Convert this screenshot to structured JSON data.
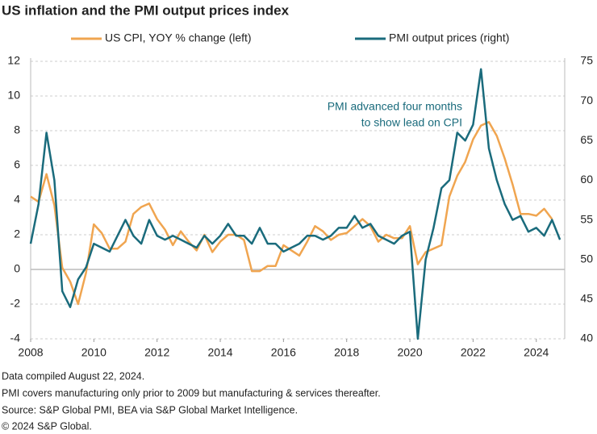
{
  "chart_data": {
    "type": "line",
    "title": "US inflation and the PMI output prices index",
    "annotation": [
      "PMI advanced four months",
      "to show lead on CPI"
    ],
    "footnotes": [
      "Data compiled August 22, 2024.",
      "PMI covers manufacturing only prior to 2009 but manufacturing & services thereafter.",
      "Source: S&P Global PMI, BEA via S&P Global Market Intelligence.",
      "© 2024 S&P Global."
    ],
    "x": [
      2008,
      2008.25,
      2008.5,
      2008.75,
      2009,
      2009.25,
      2009.5,
      2009.75,
      2010,
      2010.25,
      2010.5,
      2010.75,
      2011,
      2011.25,
      2011.5,
      2011.75,
      2012,
      2012.25,
      2012.5,
      2012.75,
      2013,
      2013.25,
      2013.5,
      2013.75,
      2014,
      2014.25,
      2014.5,
      2014.75,
      2015,
      2015.25,
      2015.5,
      2015.75,
      2016,
      2016.25,
      2016.5,
      2016.75,
      2017,
      2017.25,
      2017.5,
      2017.75,
      2018,
      2018.25,
      2018.5,
      2018.75,
      2019,
      2019.25,
      2019.5,
      2019.75,
      2020,
      2020.25,
      2020.5,
      2020.75,
      2021,
      2021.25,
      2021.5,
      2021.75,
      2022,
      2022.25,
      2022.5,
      2022.75,
      2023,
      2023.25,
      2023.5,
      2023.75,
      2024,
      2024.25,
      2024.5,
      2024.75
    ],
    "series": [
      {
        "name": "US CPI, YOY % change (left)",
        "color": "#f0a550",
        "axis": "y",
        "values": [
          4.2,
          3.9,
          5.5,
          3.7,
          0.1,
          -0.7,
          -2.0,
          -0.2,
          2.6,
          2.1,
          1.2,
          1.2,
          1.6,
          3.2,
          3.6,
          3.8,
          2.9,
          2.3,
          1.4,
          2.2,
          1.6,
          1.1,
          2.0,
          1.0,
          1.6,
          2.0,
          2.0,
          1.7,
          -0.1,
          -0.1,
          0.2,
          0.2,
          1.4,
          1.1,
          0.8,
          1.6,
          2.5,
          2.2,
          1.7,
          2.0,
          2.1,
          2.5,
          2.9,
          2.5,
          1.6,
          2.0,
          1.8,
          1.8,
          2.5,
          0.3,
          1.0,
          1.2,
          1.4,
          4.2,
          5.4,
          6.2,
          7.5,
          8.3,
          8.5,
          7.7,
          6.4,
          4.9,
          3.2,
          3.2,
          3.1,
          3.5,
          2.9,
          null
        ]
      },
      {
        "name": "PMI output prices (right)",
        "color": "#1a6b7c",
        "axis": "y2",
        "values": [
          52,
          57,
          66,
          60,
          46,
          44,
          47.5,
          49,
          52,
          51.5,
          51,
          53,
          55,
          53,
          52,
          55,
          53,
          52.5,
          53,
          52.5,
          52,
          51.5,
          53,
          52,
          53,
          54.5,
          53,
          53,
          52,
          54,
          52,
          52,
          51,
          51.5,
          52,
          53,
          53,
          52.5,
          53,
          54,
          54,
          55.5,
          54,
          54.5,
          53,
          52.5,
          52,
          53,
          53.5,
          40,
          50,
          54,
          59,
          60,
          66,
          65,
          67,
          74,
          64,
          60,
          57,
          55,
          55.5,
          53.5,
          54,
          53,
          55,
          52.5
        ]
      }
    ],
    "xlim": [
      2008,
      2024.9
    ],
    "xticks": [
      2008,
      2010,
      2012,
      2014,
      2016,
      2018,
      2020,
      2022,
      2024
    ],
    "ylim": [
      -4,
      12
    ],
    "yticks": [
      -4,
      -2,
      0,
      2,
      4,
      6,
      8,
      10,
      12
    ],
    "y2lim": [
      40,
      75
    ],
    "y2ticks": [
      40,
      45,
      50,
      55,
      60,
      65,
      70,
      75
    ],
    "grid": true
  }
}
